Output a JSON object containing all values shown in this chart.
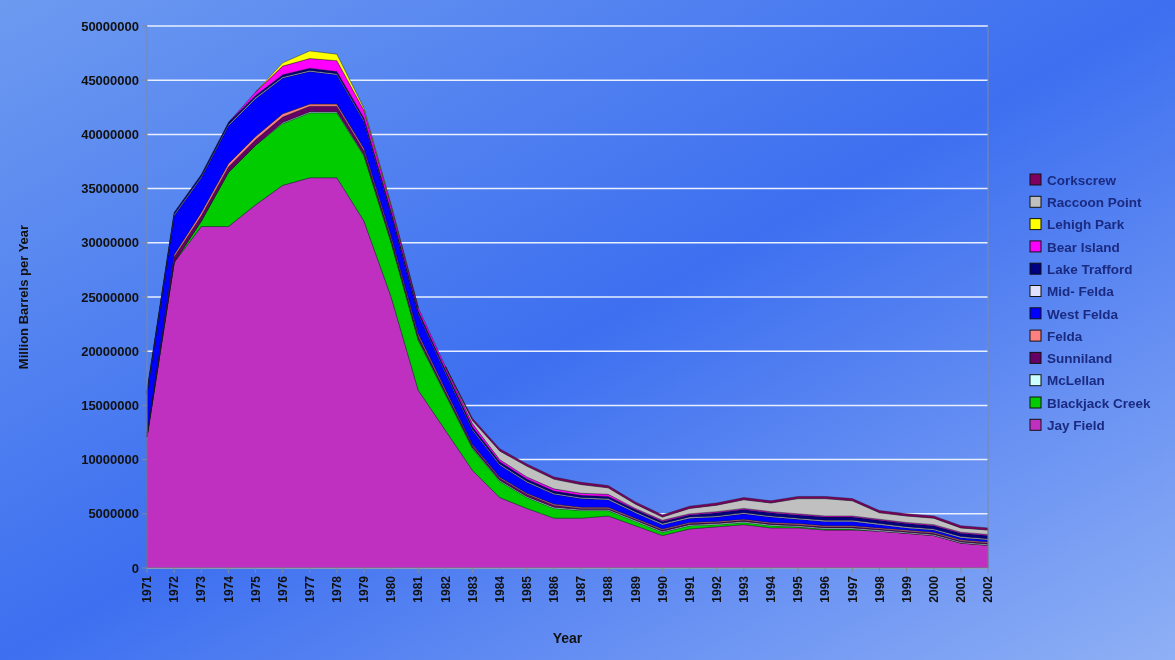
{
  "chart_data": {
    "type": "area",
    "stacked": true,
    "xlabel": "Year",
    "ylabel": "Million Barrels per Year",
    "categories": [
      "1971",
      "1972",
      "1973",
      "1974",
      "1975",
      "1976",
      "1977",
      "1978",
      "1979",
      "1980",
      "1981",
      "1982",
      "1983",
      "1984",
      "1985",
      "1986",
      "1987",
      "1988",
      "1989",
      "1990",
      "1991",
      "1992",
      "1993",
      "1994",
      "1995",
      "1996",
      "1997",
      "1998",
      "1999",
      "2000",
      "2001",
      "2002"
    ],
    "ylim": [
      0,
      50000000
    ],
    "yticks": [
      0,
      5000000,
      10000000,
      15000000,
      20000000,
      25000000,
      30000000,
      35000000,
      40000000,
      45000000,
      50000000
    ],
    "grid": "y",
    "legend": "right",
    "series": [
      {
        "name": "Jay Field",
        "color": "#c030c0",
        "values": [
          12100000,
          28200000,
          31500000,
          31500000,
          33500000,
          35300000,
          36000000,
          36000000,
          32000000,
          25000000,
          16400000,
          12700000,
          9000000,
          6500000,
          5500000,
          4600000,
          4600000,
          4800000,
          3900000,
          3000000,
          3600000,
          3800000,
          4000000,
          3700000,
          3700000,
          3500000,
          3500000,
          3400000,
          3200000,
          3000000,
          2300000,
          2100000
        ]
      },
      {
        "name": "Blackjack Creek",
        "color": "#00cc00",
        "values": [
          0,
          0,
          500000,
          5000000,
          5500000,
          5700000,
          6000000,
          6000000,
          6000000,
          5000000,
          4600000,
          3300000,
          2000000,
          1500000,
          1000000,
          900000,
          700000,
          500000,
          400000,
          300000,
          300000,
          200000,
          200000,
          200000,
          100000,
          100000,
          100000,
          0,
          0,
          0,
          0,
          0
        ]
      },
      {
        "name": "McLellan",
        "color": "#ccffff",
        "values": [
          0,
          0,
          0,
          0,
          0,
          100000,
          100000,
          100000,
          100000,
          100000,
          100000,
          100000,
          100000,
          100000,
          100000,
          100000,
          100000,
          100000,
          100000,
          100000,
          100000,
          100000,
          100000,
          100000,
          100000,
          100000,
          100000,
          100000,
          100000,
          100000,
          100000,
          100000
        ]
      },
      {
        "name": "Sunniland",
        "color": "#660066",
        "values": [
          300000,
          500000,
          500000,
          500000,
          500000,
          500000,
          500000,
          500000,
          400000,
          300000,
          300000,
          200000,
          200000,
          200000,
          200000,
          200000,
          100000,
          100000,
          100000,
          100000,
          100000,
          100000,
          100000,
          100000,
          100000,
          100000,
          100000,
          100000,
          100000,
          100000,
          100000,
          100000
        ]
      },
      {
        "name": "Felda",
        "color": "#ff8080",
        "values": [
          0,
          200000,
          300000,
          300000,
          300000,
          300000,
          200000,
          200000,
          200000,
          200000,
          200000,
          200000,
          100000,
          100000,
          100000,
          100000,
          100000,
          100000,
          100000,
          100000,
          100000,
          100000,
          100000,
          100000,
          100000,
          100000,
          100000,
          100000,
          100000,
          100000,
          100000,
          100000
        ]
      },
      {
        "name": "West Felda",
        "color": "#0000ff",
        "values": [
          3700000,
          3600000,
          3200000,
          3500000,
          3500000,
          3300000,
          3000000,
          2700000,
          2500000,
          2000000,
          1800000,
          1500000,
          1300000,
          1100000,
          1000000,
          900000,
          800000,
          700000,
          500000,
          400000,
          400000,
          400000,
          500000,
          500000,
          400000,
          400000,
          400000,
          300000,
          200000,
          200000,
          200000,
          200000
        ]
      },
      {
        "name": "Mid- Felda",
        "color": "#e0e0ff",
        "values": [
          100000,
          100000,
          100000,
          100000,
          100000,
          100000,
          100000,
          100000,
          100000,
          100000,
          100000,
          100000,
          100000,
          100000,
          100000,
          100000,
          100000,
          100000,
          100000,
          100000,
          100000,
          100000,
          100000,
          100000,
          100000,
          100000,
          100000,
          100000,
          100000,
          100000,
          100000,
          100000
        ]
      },
      {
        "name": "Lake Trafford",
        "color": "#000080",
        "values": [
          200000,
          200000,
          200000,
          200000,
          200000,
          200000,
          200000,
          200000,
          200000,
          200000,
          200000,
          200000,
          200000,
          200000,
          200000,
          200000,
          200000,
          200000,
          200000,
          200000,
          200000,
          300000,
          300000,
          300000,
          300000,
          300000,
          300000,
          300000,
          300000,
          300000,
          300000,
          300000
        ]
      },
      {
        "name": "Bear Island",
        "color": "#ff00ff",
        "values": [
          null,
          null,
          null,
          0,
          300000,
          800000,
          900000,
          1000000,
          700000,
          500000,
          300000,
          300000,
          300000,
          200000,
          200000,
          200000,
          200000,
          200000,
          100000,
          100000,
          100000,
          100000,
          100000,
          100000,
          100000,
          100000,
          100000,
          100000,
          100000,
          100000,
          100000,
          100000
        ]
      },
      {
        "name": "Lehigh Park",
        "color": "#ffff00",
        "values": [
          null,
          null,
          null,
          null,
          0,
          300000,
          700000,
          600000,
          200000,
          100000,
          0,
          null,
          null,
          null,
          null,
          null,
          null,
          null,
          null,
          null,
          null,
          null,
          null,
          null,
          null,
          null,
          null,
          null,
          null,
          null,
          null,
          null
        ]
      },
      {
        "name": "Raccoon Point",
        "color": "#c0c0c0",
        "values": [
          null,
          null,
          null,
          null,
          null,
          null,
          null,
          null,
          null,
          null,
          null,
          0,
          300000,
          800000,
          1000000,
          900000,
          800000,
          600000,
          400000,
          300000,
          500000,
          600000,
          800000,
          800000,
          1400000,
          1600000,
          1400000,
          600000,
          600000,
          600000,
          400000,
          400000
        ]
      },
      {
        "name": "Corkscrew",
        "color": "#800060",
        "values": [
          null,
          null,
          null,
          null,
          null,
          null,
          null,
          null,
          null,
          null,
          null,
          0,
          200000,
          200000,
          200000,
          200000,
          200000,
          200000,
          200000,
          200000,
          200000,
          200000,
          200000,
          200000,
          200000,
          200000,
          200000,
          200000,
          200000,
          200000,
          200000,
          200000
        ]
      }
    ]
  }
}
